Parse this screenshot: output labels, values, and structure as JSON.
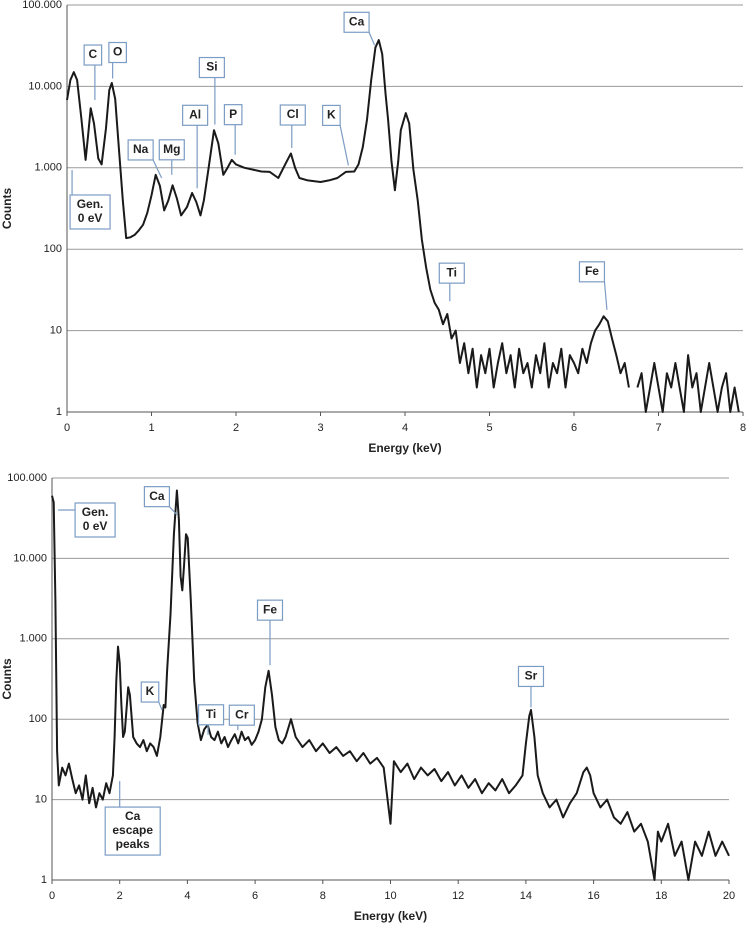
{
  "chart_data": [
    {
      "type": "line",
      "xlabel": "Energy (keV)",
      "ylabel": "Counts",
      "color": "#1a1a1a",
      "log_y": true,
      "grid": true,
      "xlim": [
        0,
        8
      ],
      "ylim": [
        1,
        100000
      ],
      "xticks": [
        0,
        1,
        2,
        3,
        4,
        5,
        6,
        7,
        8
      ],
      "yticks": [
        1,
        10,
        100,
        {
          "value": 1000,
          "label": "1.000"
        },
        {
          "value": 10000,
          "label": "10.000"
        },
        {
          "value": 100000,
          "label": "100.000"
        }
      ],
      "x": [
        0,
        0.04,
        0.08,
        0.12,
        0.17,
        0.22,
        0.25,
        0.28,
        0.32,
        0.37,
        0.41,
        0.46,
        0.5,
        0.53,
        0.57,
        0.61,
        0.66,
        0.7,
        0.75,
        0.8,
        0.85,
        0.9,
        0.95,
        1.0,
        1.05,
        1.1,
        1.15,
        1.2,
        1.25,
        1.3,
        1.35,
        1.42,
        1.48,
        1.53,
        1.58,
        1.62,
        1.67,
        1.74,
        1.79,
        1.85,
        1.9,
        1.95,
        2.0,
        2.1,
        2.2,
        2.3,
        2.4,
        2.5,
        2.6,
        2.65,
        2.7,
        2.75,
        2.85,
        3.0,
        3.1,
        3.2,
        3.3,
        3.4,
        3.45,
        3.5,
        3.55,
        3.6,
        3.65,
        3.69,
        3.73,
        3.77,
        3.8,
        3.84,
        3.88,
        3.92,
        3.95,
        4.01,
        4.05,
        4.1,
        4.15,
        4.2,
        4.25,
        4.3,
        4.35,
        4.4,
        4.45,
        4.5,
        4.55,
        4.6,
        4.65,
        4.7,
        4.75,
        4.8,
        4.85,
        4.9,
        4.95,
        5.0,
        5.05,
        5.1,
        5.15,
        5.2,
        5.25,
        5.3,
        5.35,
        5.4,
        5.45,
        5.5,
        5.55,
        5.6,
        5.65,
        5.7,
        5.75,
        5.8,
        5.85,
        5.9,
        5.95,
        6.0,
        6.05,
        6.1,
        6.15,
        6.2,
        6.25,
        6.3,
        6.35,
        6.4,
        6.45,
        6.5,
        6.55,
        6.6,
        6.65,
        6.7,
        6.75,
        6.8,
        6.85,
        6.9,
        6.95,
        7.0,
        7.05,
        7.1,
        7.15,
        7.2,
        7.25,
        7.3,
        7.35,
        7.4,
        7.45,
        7.5,
        7.55,
        7.6,
        7.65,
        7.7,
        7.75,
        7.8,
        7.85,
        7.9,
        7.95
      ],
      "values": [
        6800,
        12000,
        15000,
        12000,
        4000,
        1250,
        2500,
        5400,
        3500,
        1300,
        1100,
        3000,
        9000,
        11000,
        7000,
        2000,
        400,
        137,
        140,
        150,
        170,
        200,
        280,
        460,
        820,
        600,
        300,
        400,
        610,
        420,
        260,
        330,
        490,
        380,
        260,
        400,
        900,
        2900,
        2000,
        820,
        1000,
        1250,
        1100,
        1000,
        950,
        900,
        890,
        750,
        1200,
        1500,
        1000,
        750,
        700,
        670,
        700,
        750,
        890,
        900,
        1100,
        1800,
        3900,
        12000,
        30000,
        37000,
        25000,
        8000,
        3900,
        1200,
        530,
        1200,
        2900,
        4700,
        3500,
        950,
        400,
        130,
        60,
        32,
        22,
        18,
        12,
        16,
        8,
        10,
        4,
        7,
        3,
        6,
        2,
        5,
        3,
        6,
        2,
        4,
        7,
        3,
        5,
        2,
        6,
        3,
        4,
        2,
        5,
        3,
        7,
        2,
        4,
        3,
        6,
        2,
        5,
        4,
        3,
        6,
        4,
        7,
        10,
        12,
        15,
        13,
        8,
        5,
        3,
        4,
        2,
        null,
        2,
        3,
        1,
        2,
        4,
        2,
        1,
        3,
        2,
        4,
        2,
        1,
        5,
        2,
        3,
        1,
        2,
        4,
        2,
        1,
        2,
        3,
        1,
        2,
        1
      ],
      "annotations": [
        {
          "lines": [
            "C"
          ],
          "x": 0.33,
          "y": 6800
        },
        {
          "lines": [
            "O"
          ],
          "x": 0.54,
          "y": 12500
        },
        {
          "lines": [
            "Na"
          ],
          "x": 1.12,
          "y": 750
        },
        {
          "lines": [
            "Mg"
          ],
          "x": 1.24,
          "y": 820
        },
        {
          "lines": [
            "Al"
          ],
          "x": 1.54,
          "y": 560
        },
        {
          "lines": [
            "Si"
          ],
          "x": 1.75,
          "y": 3400
        },
        {
          "lines": [
            "P"
          ],
          "x": 1.99,
          "y": 1450
        },
        {
          "lines": [
            "Cl"
          ],
          "x": 2.66,
          "y": 1750
        },
        {
          "lines": [
            "K"
          ],
          "x": 3.33,
          "y": 1070
        },
        {
          "lines": [
            "Ca"
          ],
          "x": 3.64,
          "y": 32000
        },
        {
          "lines": [
            "Ti"
          ],
          "x": 4.53,
          "y": 23
        },
        {
          "lines": [
            "Fe"
          ],
          "x": 6.39,
          "y": 18
        },
        {
          "lines": [
            "Gen.",
            "0 eV"
          ],
          "x": 0.06,
          "y": 940
        }
      ]
    },
    {
      "type": "line",
      "xlabel": "Energy (keV)",
      "ylabel": "Counts",
      "color": "#1a1a1a",
      "log_y": true,
      "grid": true,
      "xlim": [
        0,
        20
      ],
      "ylim": [
        1,
        100000
      ],
      "xticks": [
        0,
        2,
        4,
        6,
        8,
        10,
        12,
        14,
        16,
        18,
        20
      ],
      "yticks": [
        1,
        10,
        100,
        {
          "value": 1000,
          "label": "1.000"
        },
        {
          "value": 10000,
          "label": "10.000"
        },
        {
          "value": 100000,
          "label": "100.000"
        }
      ],
      "x": [
        0,
        0.05,
        0.1,
        0.15,
        0.2,
        0.3,
        0.4,
        0.5,
        0.6,
        0.7,
        0.8,
        0.9,
        1.0,
        1.1,
        1.2,
        1.3,
        1.4,
        1.5,
        1.6,
        1.7,
        1.8,
        1.85,
        1.9,
        1.95,
        2.0,
        2.05,
        2.1,
        2.15,
        2.25,
        2.3,
        2.4,
        2.5,
        2.6,
        2.7,
        2.8,
        2.9,
        3.0,
        3.1,
        3.2,
        3.3,
        3.35,
        3.4,
        3.5,
        3.6,
        3.69,
        3.75,
        3.8,
        3.85,
        3.9,
        3.96,
        4.01,
        4.1,
        4.2,
        4.3,
        4.4,
        4.5,
        4.6,
        4.7,
        4.8,
        4.9,
        5.0,
        5.1,
        5.2,
        5.3,
        5.4,
        5.5,
        5.6,
        5.7,
        5.8,
        5.9,
        6.0,
        6.1,
        6.2,
        6.3,
        6.4,
        6.5,
        6.6,
        6.7,
        6.8,
        6.9,
        7.06,
        7.2,
        7.4,
        7.6,
        7.8,
        8.0,
        8.2,
        8.4,
        8.6,
        8.8,
        9.0,
        9.2,
        9.4,
        9.6,
        9.8,
        10.0,
        10.1,
        10.3,
        10.5,
        10.7,
        10.9,
        11.1,
        11.3,
        11.5,
        11.7,
        11.9,
        12.1,
        12.3,
        12.5,
        12.7,
        12.9,
        13.1,
        13.3,
        13.5,
        13.7,
        13.9,
        14.0,
        14.1,
        14.15,
        14.25,
        14.35,
        14.5,
        14.7,
        14.9,
        15.1,
        15.3,
        15.5,
        15.7,
        15.8,
        15.9,
        16.0,
        16.2,
        16.4,
        16.6,
        16.8,
        17.0,
        17.2,
        17.4,
        17.6,
        17.8,
        17.9,
        18.0,
        18.2,
        18.4,
        18.6,
        18.8,
        19.0,
        19.2,
        19.4,
        19.6,
        19.8,
        20.0
      ],
      "values": [
        60000,
        50000,
        3000,
        40,
        15,
        25,
        20,
        28,
        18,
        12,
        15,
        10,
        20,
        9,
        14,
        8,
        12,
        10,
        16,
        12,
        20,
        60,
        300,
        800,
        500,
        150,
        60,
        70,
        250,
        200,
        60,
        50,
        45,
        55,
        40,
        50,
        45,
        35,
        60,
        150,
        140,
        400,
        2000,
        20000,
        70000,
        30000,
        6000,
        4000,
        8000,
        20000,
        18000,
        3000,
        300,
        90,
        55,
        75,
        85,
        60,
        55,
        70,
        50,
        60,
        45,
        55,
        65,
        50,
        70,
        55,
        60,
        48,
        55,
        70,
        100,
        250,
        400,
        200,
        80,
        55,
        50,
        60,
        100,
        60,
        45,
        55,
        40,
        50,
        38,
        45,
        35,
        40,
        30,
        38,
        28,
        33,
        25,
        5,
        30,
        22,
        28,
        18,
        25,
        20,
        24,
        17,
        22,
        15,
        20,
        14,
        18,
        12,
        16,
        13,
        18,
        12,
        15,
        20,
        50,
        110,
        130,
        60,
        20,
        12,
        8,
        10,
        6,
        9,
        12,
        22,
        25,
        20,
        12,
        8,
        10,
        6,
        5,
        7,
        4,
        5,
        3,
        1,
        4,
        3,
        5,
        2,
        3,
        1,
        3,
        2,
        4,
        2,
        3,
        2
      ],
      "annotations": [
        {
          "lines": [
            "Gen.",
            "0 eV"
          ],
          "x": 0.18,
          "y": 40000
        },
        {
          "lines": [
            "Ca"
          ],
          "x": 3.69,
          "y": 35000
        },
        {
          "lines": [
            "K"
          ],
          "x": 3.25,
          "y": 130
        },
        {
          "lines": [
            "Ti"
          ],
          "x": 4.61,
          "y": 64
        },
        {
          "lines": [
            "Cr"
          ],
          "x": 5.49,
          "y": 73
        },
        {
          "lines": [
            "Fe"
          ],
          "x": 6.44,
          "y": 470
        },
        {
          "lines": [
            "Sr"
          ],
          "x": 14.15,
          "y": 140
        },
        {
          "lines": [
            "Ca",
            "escape",
            "peaks"
          ],
          "x": 2.0,
          "y": 17
        }
      ]
    }
  ]
}
